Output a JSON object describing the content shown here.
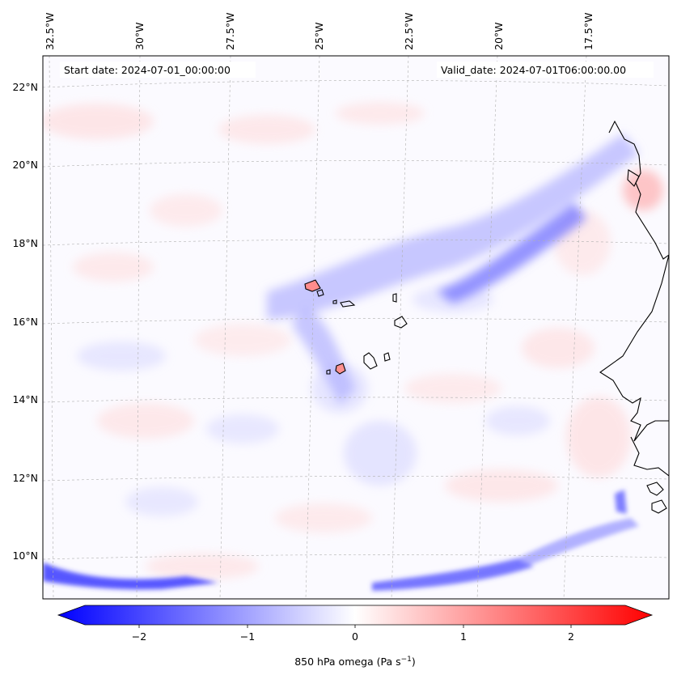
{
  "map": {
    "start_label": "Start date: 2024-07-01_00:00:00",
    "valid_label": "Valid_date: 2024-07-01T06:00:00.00",
    "lon_labels": [
      "32.5°W",
      "30°W",
      "27.5°W",
      "25°W",
      "22.5°W",
      "20°W",
      "17.5°W"
    ],
    "lat_labels": [
      "22°N",
      "20°N",
      "18°N",
      "16°N",
      "14°N",
      "12°N",
      "10°N"
    ],
    "variable": "850 hPa omega",
    "colors": {
      "negative": "#0000ff",
      "neutral": "#ffffff",
      "positive": "#ff0000",
      "coastline": "#000000",
      "gridline": "#b0b0b0"
    }
  },
  "colorbar": {
    "ticks": [
      "−2",
      "−1",
      "0",
      "1",
      "2"
    ],
    "tick_values": [
      -2,
      -1,
      0,
      1,
      2
    ],
    "range": [
      -2.5,
      2.5
    ],
    "label_main": "850 hPa omega (Pa s",
    "label_sup": "−1",
    "label_end": ")"
  }
}
